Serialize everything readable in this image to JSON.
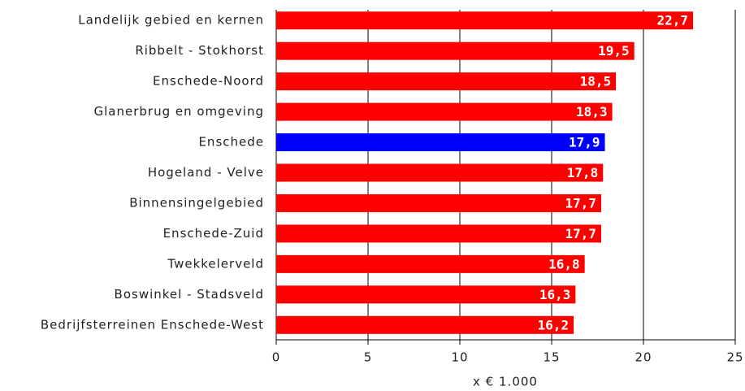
{
  "chart_data": {
    "type": "barh",
    "categories": [
      "Landelijk gebied en kernen",
      "Ribbelt - Stokhorst",
      "Enschede-Noord",
      "Glanerbrug en omgeving",
      "Enschede",
      "Hogeland - Velve",
      "Binnensingelgebied",
      "Enschede-Zuid",
      "Twekkelerveld",
      "Boswinkel - Stadsveld",
      "Bedrijfsterreinen Enschede-West"
    ],
    "values": [
      22.7,
      19.5,
      18.5,
      18.3,
      17.9,
      17.8,
      17.7,
      17.7,
      16.8,
      16.3,
      16.2
    ],
    "value_labels": [
      "22,7",
      "19,5",
      "18,5",
      "18,3",
      "17,9",
      "17,8",
      "17,7",
      "17,7",
      "16,8",
      "16,3",
      "16,2"
    ],
    "colors": [
      "#ff0000",
      "#ff0000",
      "#ff0000",
      "#ff0000",
      "#0000ff",
      "#ff0000",
      "#ff0000",
      "#ff0000",
      "#ff0000",
      "#ff0000",
      "#ff0000"
    ],
    "xlabel": "x € 1.000",
    "xlim": [
      0,
      25
    ],
    "xticks": [
      0,
      5,
      10,
      15,
      20,
      25
    ],
    "grid": true
  }
}
